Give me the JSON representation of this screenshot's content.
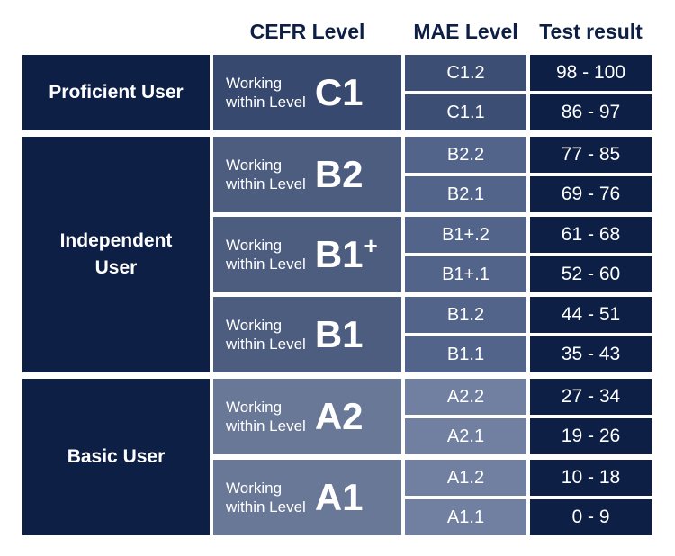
{
  "headers": {
    "cefr": "CEFR Level",
    "mae": "MAE Level",
    "result": "Test result"
  },
  "groups": [
    {
      "label": "Proficient User"
    },
    {
      "label_line1": "Independent",
      "label_line2": "User"
    },
    {
      "label": "Basic User"
    }
  ],
  "cefr_blocks": [
    {
      "working_line1": "Working",
      "working_line2": "within Level",
      "level": "C1",
      "sup": ""
    },
    {
      "working_line1": "Working",
      "working_line2": "within Level",
      "level": "B2",
      "sup": ""
    },
    {
      "working_line1": "Working",
      "working_line2": "within Level",
      "level": "B1",
      "sup": "+"
    },
    {
      "working_line1": "Working",
      "working_line2": "within Level",
      "level": "B1",
      "sup": ""
    },
    {
      "working_line1": "Working",
      "working_line2": "within Level",
      "level": "A2",
      "sup": ""
    },
    {
      "working_line1": "Working",
      "working_line2": "within Level",
      "level": "A1",
      "sup": ""
    }
  ],
  "rows": [
    {
      "mae": "C1.2",
      "result": "98 - 100"
    },
    {
      "mae": "C1.1",
      "result": "86 - 97"
    },
    {
      "mae": "B2.2",
      "result": "77 - 85"
    },
    {
      "mae": "B2.1",
      "result": "69 - 76"
    },
    {
      "mae": "B1+.2",
      "result": "61 - 68"
    },
    {
      "mae": "B1+.1",
      "result": "52 - 60"
    },
    {
      "mae": "B1.2",
      "result": "44 - 51"
    },
    {
      "mae": "B1.1",
      "result": "35 - 43"
    },
    {
      "mae": "A2.2",
      "result": "27 - 34"
    },
    {
      "mae": "A2.1",
      "result": "19 - 26"
    },
    {
      "mae": "A1.2",
      "result": "10 - 18"
    },
    {
      "mae": "A1.1",
      "result": "0 - 9"
    }
  ],
  "colors": {
    "navy": "#0d1f45",
    "cefr_dark": "#37496e",
    "cefr_mid": "#4d5d80",
    "cefr_light": "#6a7897"
  }
}
